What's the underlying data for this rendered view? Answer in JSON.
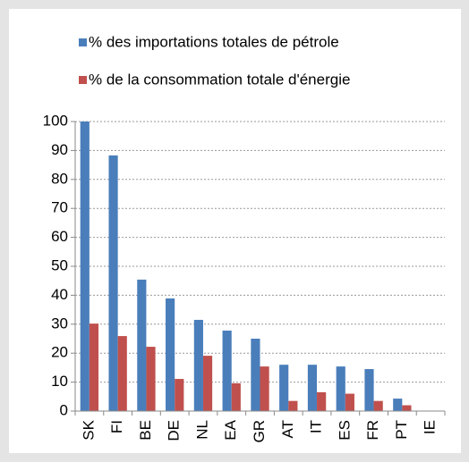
{
  "chart_data": {
    "type": "bar",
    "categories": [
      "SK",
      "FI",
      "BE",
      "DE",
      "NL",
      "EA",
      "GR",
      "AT",
      "IT",
      "ES",
      "FR",
      "PT",
      "IE"
    ],
    "series": [
      {
        "name": "% des importations totales de pétrole",
        "color": "#4a7ebb",
        "values": [
          100,
          88.3,
          45.4,
          38.9,
          31.5,
          27.8,
          25,
          16,
          16,
          15.4,
          14.5,
          4.3,
          0
        ]
      },
      {
        "name": "% de la consommation totale d'énergie",
        "color": "#c0504d",
        "values": [
          30.2,
          25.9,
          22.2,
          11.1,
          19.1,
          9.6,
          15.4,
          3.5,
          6.5,
          6,
          3.5,
          2,
          0
        ]
      }
    ],
    "ylim": [
      0,
      100
    ],
    "yticks": [
      0,
      10,
      20,
      30,
      40,
      50,
      60,
      70,
      80,
      90,
      100
    ],
    "grid": true
  }
}
